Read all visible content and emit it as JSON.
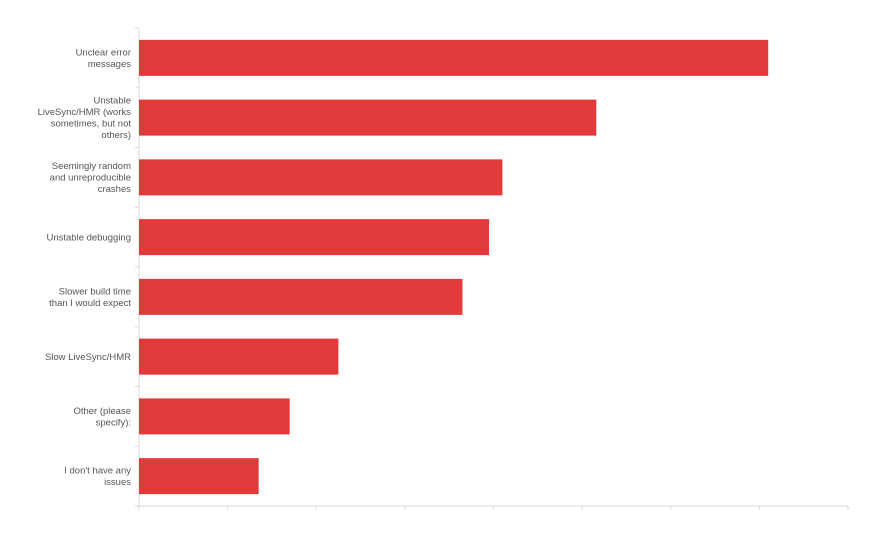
{
  "chart_data": {
    "type": "bar",
    "orientation": "horizontal",
    "title": "",
    "xlabel": "",
    "ylabel": "",
    "categories": [
      "Unclear error messages",
      "Unstable LiveSync/HMR (works sometimes, but not others)",
      "Seemingly random and unreproducible crashes",
      "Unstable debugging",
      "Slower build time than I would expect",
      "Slow LiveSync/HMR",
      "Other (please specify):",
      "I don't have any issues"
    ],
    "values": [
      71,
      51.6,
      41,
      39.5,
      36.5,
      22.5,
      17,
      13.5
    ],
    "xlim": [
      0,
      80
    ],
    "grid": false,
    "legend": "none",
    "bar_color": "#e23a3b",
    "axis_color": "#d9d9d9"
  }
}
